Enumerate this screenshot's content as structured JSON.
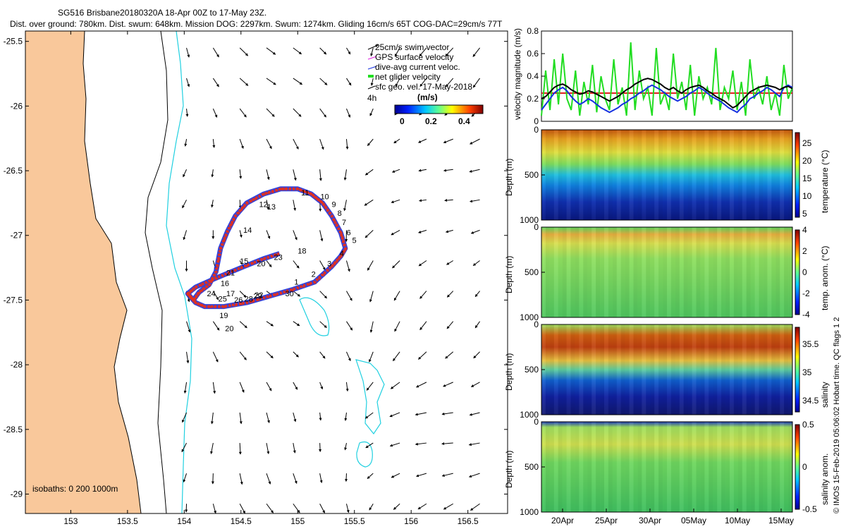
{
  "title_line1": "SG516 Brisbane20180320A 18-Apr 00Z to 17-May 23Z.",
  "title_line2": "Dist. over ground: 780km. Dist. swum: 648km. Mission DOG: 2297km. Swum: 1274km. Gliding 16cm/s 65T COG-DAC=29cm/s 77T",
  "colors": {
    "land": "#f9c89b",
    "track": "#e03020",
    "current": "#1530e0",
    "glider": "#22dd22",
    "isobath200": "#20d0e0"
  },
  "chart_data": [
    {
      "type": "scatter",
      "name": "map",
      "xlim": [
        152.6,
        156.85
      ],
      "ylim": [
        -29.15,
        -25.42
      ],
      "x_ticks": [
        "153",
        "153.5",
        "154",
        "154.5",
        "155",
        "155.5",
        "156",
        "156.5"
      ],
      "x_tick_values": [
        153,
        153.5,
        154,
        154.5,
        155,
        155.5,
        156,
        156.5
      ],
      "y_ticks": [
        "-25.5",
        "-26",
        "-26.5",
        "-27",
        "-27.5",
        "-28",
        "-28.5",
        "-29"
      ],
      "y_tick_values": [
        -25.5,
        -26,
        -26.5,
        -27,
        -27.5,
        -28,
        -28.5,
        -29
      ],
      "legend": [
        "25cm/s swim vector",
        "GPS surface velocity",
        "dive-avg current veloc.",
        "net glider velocity",
        "sfc geo. vel. 17-May-2018"
      ],
      "legend_4h": "4h",
      "colorbar_label": "(m/s)",
      "colorbar_ticks": [
        "0",
        "0.2",
        "0.4"
      ],
      "isobath_label": "isobaths: 0   200  1000m",
      "track": [
        [
          154.03,
          -27.45
        ],
        [
          154.1,
          -27.52
        ],
        [
          154.18,
          -27.55
        ],
        [
          154.35,
          -27.55
        ],
        [
          154.55,
          -27.52
        ],
        [
          154.75,
          -27.47
        ],
        [
          154.95,
          -27.42
        ],
        [
          155.15,
          -27.36
        ],
        [
          155.3,
          -27.24
        ],
        [
          155.38,
          -27.16
        ],
        [
          155.42,
          -27.1
        ],
        [
          155.38,
          -26.98
        ],
        [
          155.3,
          -26.85
        ],
        [
          155.22,
          -26.75
        ],
        [
          155.12,
          -26.68
        ],
        [
          155.0,
          -26.64
        ],
        [
          154.85,
          -26.64
        ],
        [
          154.7,
          -26.68
        ],
        [
          154.55,
          -26.75
        ],
        [
          154.45,
          -26.85
        ],
        [
          154.38,
          -26.97
        ],
        [
          154.32,
          -27.1
        ],
        [
          154.28,
          -27.28
        ],
        [
          154.22,
          -27.38
        ],
        [
          154.13,
          -27.44
        ],
        [
          154.08,
          -27.5
        ],
        [
          154.03,
          -27.45
        ],
        [
          154.1,
          -27.4
        ],
        [
          154.28,
          -27.33
        ],
        [
          154.5,
          -27.25
        ],
        [
          154.7,
          -27.18
        ],
        [
          154.84,
          -27.14
        ]
      ],
      "track_labels": [
        {
          "text": "1",
          "x": 154.97,
          "y": -27.38
        },
        {
          "text": "2",
          "x": 155.12,
          "y": -27.32
        },
        {
          "text": "3",
          "x": 155.26,
          "y": -27.24
        },
        {
          "text": "4",
          "x": 155.37,
          "y": -27.16
        },
        {
          "text": "5",
          "x": 155.48,
          "y": -27.06
        },
        {
          "text": "6",
          "x": 155.43,
          "y": -27.0
        },
        {
          "text": "7",
          "x": 155.39,
          "y": -26.92
        },
        {
          "text": "8",
          "x": 155.35,
          "y": -26.85
        },
        {
          "text": "9",
          "x": 155.3,
          "y": -26.78
        },
        {
          "text": "10",
          "x": 155.2,
          "y": -26.72
        },
        {
          "text": "11",
          "x": 155.03,
          "y": -26.69
        },
        {
          "text": "12",
          "x": 154.66,
          "y": -26.78
        },
        {
          "text": "13",
          "x": 154.73,
          "y": -26.8
        },
        {
          "text": "14",
          "x": 154.52,
          "y": -26.98
        },
        {
          "text": "15",
          "x": 154.49,
          "y": -27.22
        },
        {
          "text": "16",
          "x": 154.32,
          "y": -27.39
        },
        {
          "text": "17",
          "x": 154.37,
          "y": -27.47
        },
        {
          "text": "18",
          "x": 155.0,
          "y": -27.14
        },
        {
          "text": "19",
          "x": 154.31,
          "y": -27.64
        },
        {
          "text": "20",
          "x": 154.36,
          "y": -27.74
        },
        {
          "text": "20",
          "x": 154.64,
          "y": -27.24
        },
        {
          "text": "21",
          "x": 154.37,
          "y": -27.31
        },
        {
          "text": "22",
          "x": 154.62,
          "y": -27.48
        },
        {
          "text": "23",
          "x": 154.79,
          "y": -27.19
        },
        {
          "text": "24",
          "x": 154.2,
          "y": -27.47
        },
        {
          "text": "25",
          "x": 154.3,
          "y": -27.51
        },
        {
          "text": "26",
          "x": 154.44,
          "y": -27.52
        },
        {
          "text": "28",
          "x": 154.53,
          "y": -27.51
        },
        {
          "text": "29",
          "x": 154.61,
          "y": -27.49
        },
        {
          "text": "30",
          "x": 154.89,
          "y": -27.47
        }
      ]
    },
    {
      "type": "line",
      "name": "velocity",
      "ylabel": "velocity magnitude (m/s)",
      "ylim": [
        0,
        0.8
      ],
      "y_ticks": [
        "0",
        "0.2",
        "0.4",
        "0.6",
        "0.8"
      ],
      "reference_line": 0.25,
      "series": [
        {
          "name": "net glider velocity",
          "values": [
            0.05,
            0.45,
            0.1,
            0.55,
            0.15,
            0.6,
            0.2,
            0.1,
            0.45,
            0.05,
            0.35,
            0.15,
            0.5,
            0.08,
            0.4,
            0.2,
            0.1,
            0.55,
            0.15,
            0.3,
            0.05,
            0.7,
            0.1,
            0.45,
            0.2,
            0.3,
            0.05,
            0.65,
            0.15,
            0.25,
            0.1,
            0.6,
            0.2,
            0.35,
            0.1,
            0.5,
            0.05,
            0.4,
            0.2,
            0.3,
            0.15,
            0.65,
            0.1,
            0.3,
            0.2,
            0.45,
            0.1,
            0.35,
            0.05,
            0.55,
            0.2,
            0.3,
            0.15,
            0.4,
            0.1,
            0.25,
            0.05,
            0.5,
            0.2,
            0.3
          ]
        },
        {
          "name": "dive-avg current veloc.",
          "values": [
            0.1,
            0.15,
            0.2,
            0.25,
            0.28,
            0.3,
            0.27,
            0.22,
            0.18,
            0.15,
            0.17,
            0.2,
            0.18,
            0.15,
            0.12,
            0.1,
            0.08,
            0.1,
            0.12,
            0.15,
            0.17,
            0.2,
            0.22,
            0.25,
            0.27,
            0.3,
            0.32,
            0.3,
            0.28,
            0.25,
            0.22,
            0.2,
            0.18,
            0.2,
            0.22,
            0.25,
            0.27,
            0.3,
            0.28,
            0.25,
            0.22,
            0.2,
            0.18,
            0.15,
            0.12,
            0.1,
            0.08,
            0.12,
            0.15,
            0.2,
            0.22,
            0.25,
            0.27,
            0.3,
            0.28,
            0.25,
            0.22,
            0.3,
            0.32,
            0.3
          ]
        },
        {
          "name": "25cm/s swim vector",
          "values": [
            0.2,
            0.22,
            0.26,
            0.3,
            0.32,
            0.33,
            0.31,
            0.28,
            0.26,
            0.24,
            0.25,
            0.27,
            0.26,
            0.24,
            0.22,
            0.2,
            0.18,
            0.2,
            0.22,
            0.25,
            0.28,
            0.3,
            0.33,
            0.35,
            0.37,
            0.38,
            0.37,
            0.35,
            0.33,
            0.3,
            0.28,
            0.3,
            0.27,
            0.25,
            0.28,
            0.3,
            0.31,
            0.32,
            0.3,
            0.27,
            0.25,
            0.22,
            0.2,
            0.18,
            0.15,
            0.12,
            0.14,
            0.18,
            0.22,
            0.26,
            0.28,
            0.3,
            0.31,
            0.32,
            0.31,
            0.3,
            0.28,
            0.3,
            0.31,
            0.29
          ]
        }
      ]
    },
    {
      "type": "heatmap",
      "name": "temperature",
      "ylabel": "Depth (m)",
      "cbar_label": "temperature (°C)",
      "y_ticks": [
        "0",
        "500",
        "1000"
      ],
      "cbar_ticks": [
        "25",
        "20",
        "15",
        "10",
        "5"
      ],
      "clim": [
        4,
        28
      ]
    },
    {
      "type": "heatmap",
      "name": "temp-anomaly",
      "ylabel": "Depth (m)",
      "cbar_label": "temp. anom. (°C)",
      "y_ticks": [
        "0",
        "500",
        "1000"
      ],
      "cbar_ticks": [
        "4",
        "2",
        "0",
        "-2",
        "-4"
      ],
      "clim": [
        -4,
        4
      ]
    },
    {
      "type": "heatmap",
      "name": "salinity",
      "ylabel": "Depth (m)",
      "cbar_label": "salinity",
      "y_ticks": [
        "0",
        "500",
        "1000"
      ],
      "cbar_ticks": [
        "35.5",
        "35",
        "34.5"
      ],
      "clim": [
        34.3,
        35.8
      ]
    },
    {
      "type": "heatmap",
      "name": "salinity-anomaly",
      "ylabel": "Depth (m)",
      "cbar_label": "salinity anom.",
      "y_ticks": [
        "0",
        "500",
        "1000"
      ],
      "cbar_ticks": [
        "0.5",
        "0",
        "-0.5"
      ],
      "clim": [
        -0.5,
        0.5
      ],
      "x_ticks": [
        "20Apr",
        "25Apr",
        "30Apr",
        "05May",
        "10May",
        "15May"
      ]
    }
  ],
  "footer": "© IMOS 15-Feb-2019 05:06:02 Hobart time. QC flags 1  2"
}
